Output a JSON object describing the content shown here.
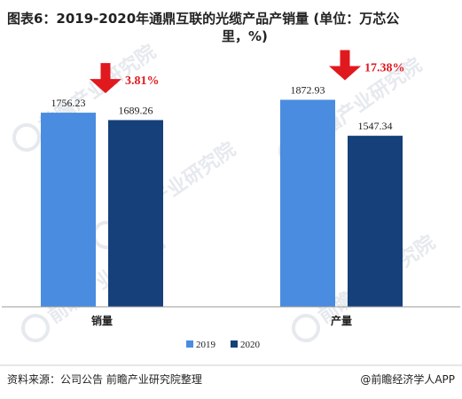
{
  "title": {
    "line1": "图表6：2019-2020年通鼎互联的光缆产品产销量 (单位：万芯公",
    "line2": "里，%)"
  },
  "chart_data": {
    "type": "bar",
    "categories": [
      "销量",
      "产量"
    ],
    "series": [
      {
        "name": "2019",
        "values": [
          1756.23,
          1872.93
        ],
        "color": "#4a8ce0"
      },
      {
        "name": "2020",
        "values": [
          1689.26,
          1547.34
        ],
        "color": "#15407a"
      }
    ],
    "value_labels": [
      [
        "1756.23",
        "1872.93"
      ],
      [
        "1689.26",
        "1547.34"
      ]
    ],
    "changes": [
      "3.81%",
      "17.38%"
    ],
    "change_direction": "down",
    "change_color": "#e0191f",
    "ylim": [
      0,
      2150
    ],
    "grid": false,
    "legend_position": "bottom-center",
    "xlabel": "",
    "ylabel": ""
  },
  "legend": {
    "items": [
      "2019",
      "2020"
    ]
  },
  "footer": {
    "source": "资料来源：公司公告 前瞻产业研究院整理",
    "brand": "@前瞻经济学人APP"
  },
  "watermark": {
    "text": "前瞻产业研究院"
  }
}
